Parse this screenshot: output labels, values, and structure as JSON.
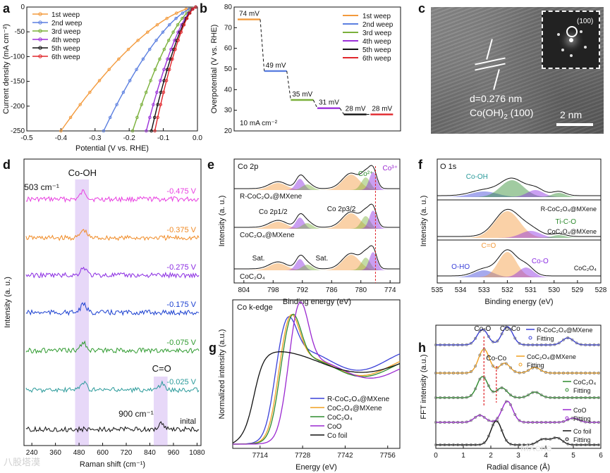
{
  "panel_letters": {
    "a": "a",
    "b": "b",
    "c": "c",
    "d": "d",
    "e": "e",
    "f": "f",
    "g": "g",
    "h": "h"
  },
  "colors": {
    "orange": "#f39a3c",
    "blue": "#5b7fe0",
    "green": "#7ab03a",
    "purple": "#9b30d9",
    "black": "#111111",
    "red": "#e0262b",
    "magenta": "#e83ee0",
    "dorange": "#f08a24",
    "dpurple": "#8a2be2",
    "dblue": "#1a3fd0",
    "dgreen": "#2e9a2e",
    "teal": "#2a9a9a",
    "gblue": "#3a40d8",
    "gorange": "#f0a020",
    "ggreen": "#2e8b2e",
    "gpurple": "#9a28d0"
  },
  "panel_c": {
    "fft_label": "(100)",
    "d_line1": "d=0.276 nm",
    "d_line2": "Co(OH)",
    "d_sub": "2",
    "d_line3": " (100)",
    "scale": "2 nm"
  },
  "watermark": {
    "brand": "MXene",
    "logo": "八股塔漠"
  },
  "chart_data": [
    {
      "id": "a",
      "type": "line",
      "xlabel": "Potential (V vs. RHE)",
      "ylabel": "Current density (mA cm⁻²)",
      "xlim": [
        -0.5,
        0.0
      ],
      "ylim": [
        -250,
        0
      ],
      "xticks": [
        "-0.5",
        "-0.4",
        "-0.3",
        "-0.2",
        "-0.1",
        "0.0"
      ],
      "yticks": [
        "0",
        "-50",
        "-100",
        "-150",
        "-200",
        "-250"
      ],
      "series": [
        {
          "name": "1st weep",
          "onset": -0.005,
          "end": -0.4
        },
        {
          "name": "2nd weep",
          "onset": -0.005,
          "end": -0.275
        },
        {
          "name": "3rd weep",
          "onset": -0.005,
          "end": -0.19
        },
        {
          "name": "4th weep",
          "onset": -0.005,
          "end": -0.15
        },
        {
          "name": "5th weep",
          "onset": -0.005,
          "end": -0.135
        },
        {
          "name": "6th weep",
          "onset": -0.005,
          "end": -0.125
        }
      ]
    },
    {
      "id": "b",
      "type": "step",
      "ylabel": "Overpotential (V vs. RHE)",
      "annotation": "10 mA cm⁻²",
      "ylim": [
        20,
        80
      ],
      "yticks": [
        "20",
        "30",
        "40",
        "50",
        "60",
        "70",
        "80"
      ],
      "categories": [
        "1st weep",
        "2nd weep",
        "3rd weep",
        "4th weep",
        "5th weep",
        "6th weep"
      ],
      "values": [
        74,
        49,
        35,
        31,
        28,
        28
      ],
      "labels": [
        "74 mV",
        "49 mV",
        "35 mV",
        "31 mV",
        "28 mV",
        "28 mV"
      ]
    },
    {
      "id": "d",
      "type": "line",
      "xlabel": "Raman shift (cm⁻¹)",
      "ylabel": "Intensity (a. u.)",
      "xlim": [
        200,
        1100
      ],
      "xticks": [
        "240",
        "360",
        "480",
        "600",
        "720",
        "840",
        "960",
        "1080"
      ],
      "band_labels": [
        "Co-OH",
        "503 cm⁻¹",
        "C=O",
        "900 cm⁻¹"
      ],
      "series": [
        {
          "name": "-0.475 V"
        },
        {
          "name": "-0.375 V"
        },
        {
          "name": "-0.275 V"
        },
        {
          "name": "-0.175 V"
        },
        {
          "name": "-0.075 V"
        },
        {
          "name": "-0.025 V"
        },
        {
          "name": "inital"
        }
      ]
    },
    {
      "id": "e",
      "type": "area",
      "title": "Co 2p",
      "xlabel": "Binding energy (eV)",
      "ylabel": "Intensity (a. u.)",
      "xlim": [
        806,
        772
      ],
      "xticks": [
        "804",
        "798",
        "792",
        "786",
        "780",
        "774"
      ],
      "series": [
        {
          "name": "R-CoC₂O₄@MXene"
        },
        {
          "name": "CoC₂O₄@MXene"
        },
        {
          "name": "CoC₂O₄"
        }
      ],
      "annotations": [
        "Co²⁺",
        "Co³⁺",
        "Co 2p1/2",
        "Co 2p3/2",
        "Sat.",
        "Sat."
      ]
    },
    {
      "id": "f",
      "type": "area",
      "title": "O 1s",
      "xlabel": "Binding energy (eV)",
      "ylabel": "Intensity (a. u.)",
      "xlim": [
        535,
        528
      ],
      "xticks": [
        "535",
        "534",
        "533",
        "532",
        "531",
        "530",
        "529",
        "528"
      ],
      "series": [
        {
          "name": "R-CoC₂O₄@MXene"
        },
        {
          "name": "CoC₂O₄@MXene"
        },
        {
          "name": "CoC₂O₄"
        }
      ],
      "annotations": [
        "Co-OH",
        "Ti-C-O",
        "C=O",
        "O-HO",
        "Co-O"
      ]
    },
    {
      "id": "g",
      "type": "line",
      "title": "Co k-edge",
      "xlabel": "Energy (eV)",
      "ylabel": "Normalized intensity (a.u.)",
      "xlim": [
        7705,
        7760
      ],
      "xticks": [
        "7714",
        "7728",
        "7742",
        "7756"
      ],
      "series": [
        {
          "name": "R-CoC₂O₄@MXene"
        },
        {
          "name": "CoC₂O₄@MXene"
        },
        {
          "name": "CoC₂O₄"
        },
        {
          "name": "CoO"
        },
        {
          "name": "Co foil"
        }
      ]
    },
    {
      "id": "h",
      "type": "line",
      "xlabel": "Radial disance (Å)",
      "ylabel": "FFT intensity (a.u.)",
      "xlim": [
        0,
        6
      ],
      "xticks": [
        "0",
        "1",
        "2",
        "3",
        "4",
        "5",
        "6"
      ],
      "annotations": [
        "Co-O",
        "Co-Co",
        "Co-Co"
      ],
      "series": [
        {
          "name": "R-CoC₂O₄@MXene"
        },
        {
          "name": "CoC₂O₄@MXene"
        },
        {
          "name": "CoC₂O₄"
        },
        {
          "name": "CoO"
        },
        {
          "name": "Co foil"
        }
      ],
      "fit_label": "Fitting"
    }
  ]
}
